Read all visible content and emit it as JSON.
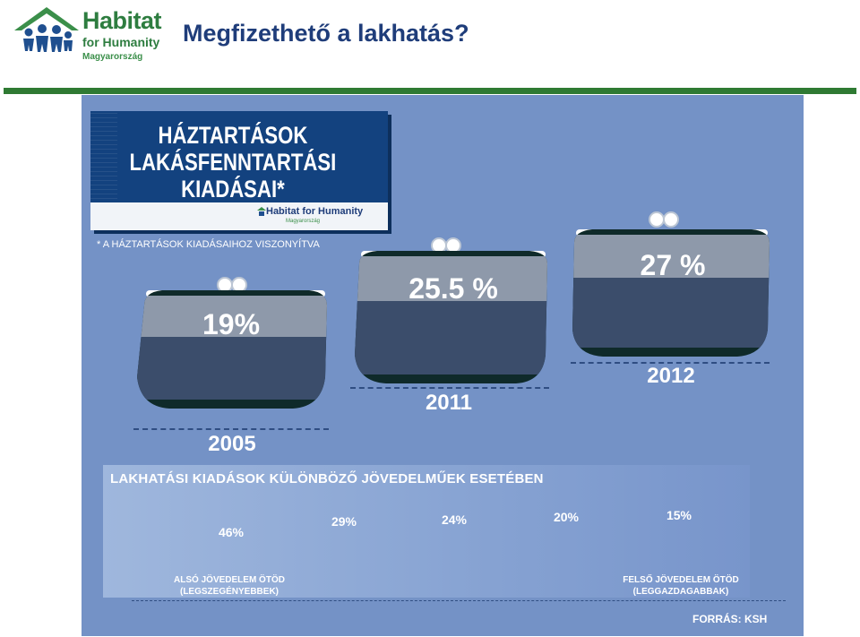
{
  "header": {
    "logo_line1": "Habitat",
    "logo_line2": "for Humanity",
    "logo_line3": "Magyarország",
    "title": "Megfizethető a lakhatás?"
  },
  "infographic": {
    "headline": "HÁZTARTÁSOK LAKÁSFENNTARTÁSI KIADÁSAI*",
    "brand": "Habitat for Humanity",
    "brand_sub": "Magyarország",
    "footnote": "* A HÁZTARTÁSOK KIADÁSAIHOZ VISZONYÍTVA",
    "years": [
      {
        "year": "2005",
        "pct_label": "19%",
        "value": 19
      },
      {
        "year": "2011",
        "pct_label": "25.5 %",
        "value": 25.5
      },
      {
        "year": "2012",
        "pct_label": "27 %",
        "value": 27
      }
    ],
    "quintile_title": "LAKHATÁSI KIADÁSOK KÜLÖNBÖZŐ JÖVEDELMŰEK ESETÉBEN",
    "quintiles": [
      {
        "pct_label": "46%",
        "value": 46
      },
      {
        "pct_label": "29%",
        "value": 29
      },
      {
        "pct_label": "24%",
        "value": 24
      },
      {
        "pct_label": "20%",
        "value": 20
      },
      {
        "pct_label": "15%",
        "value": 15
      }
    ],
    "lowest_label_line1": "ALSÓ JÖVEDELEM ÖTÖD",
    "lowest_label_line2": "(LEGSZEGÉNYEBBEK)",
    "highest_label_line1": "FELSŐ JÖVEDELEM ÖTÖD",
    "highest_label_line2": "(LEGGAZDAGABBAK)",
    "source": "FORRÁS: KSH"
  },
  "colors": {
    "brand_green": "#2e7d40",
    "title_blue": "#1f3d7a",
    "background_blue": "#7492c6",
    "purse_dark": "#3b4d6b",
    "purse_light": "#8e99aa",
    "purse_outline": "#0f2a2a"
  }
}
